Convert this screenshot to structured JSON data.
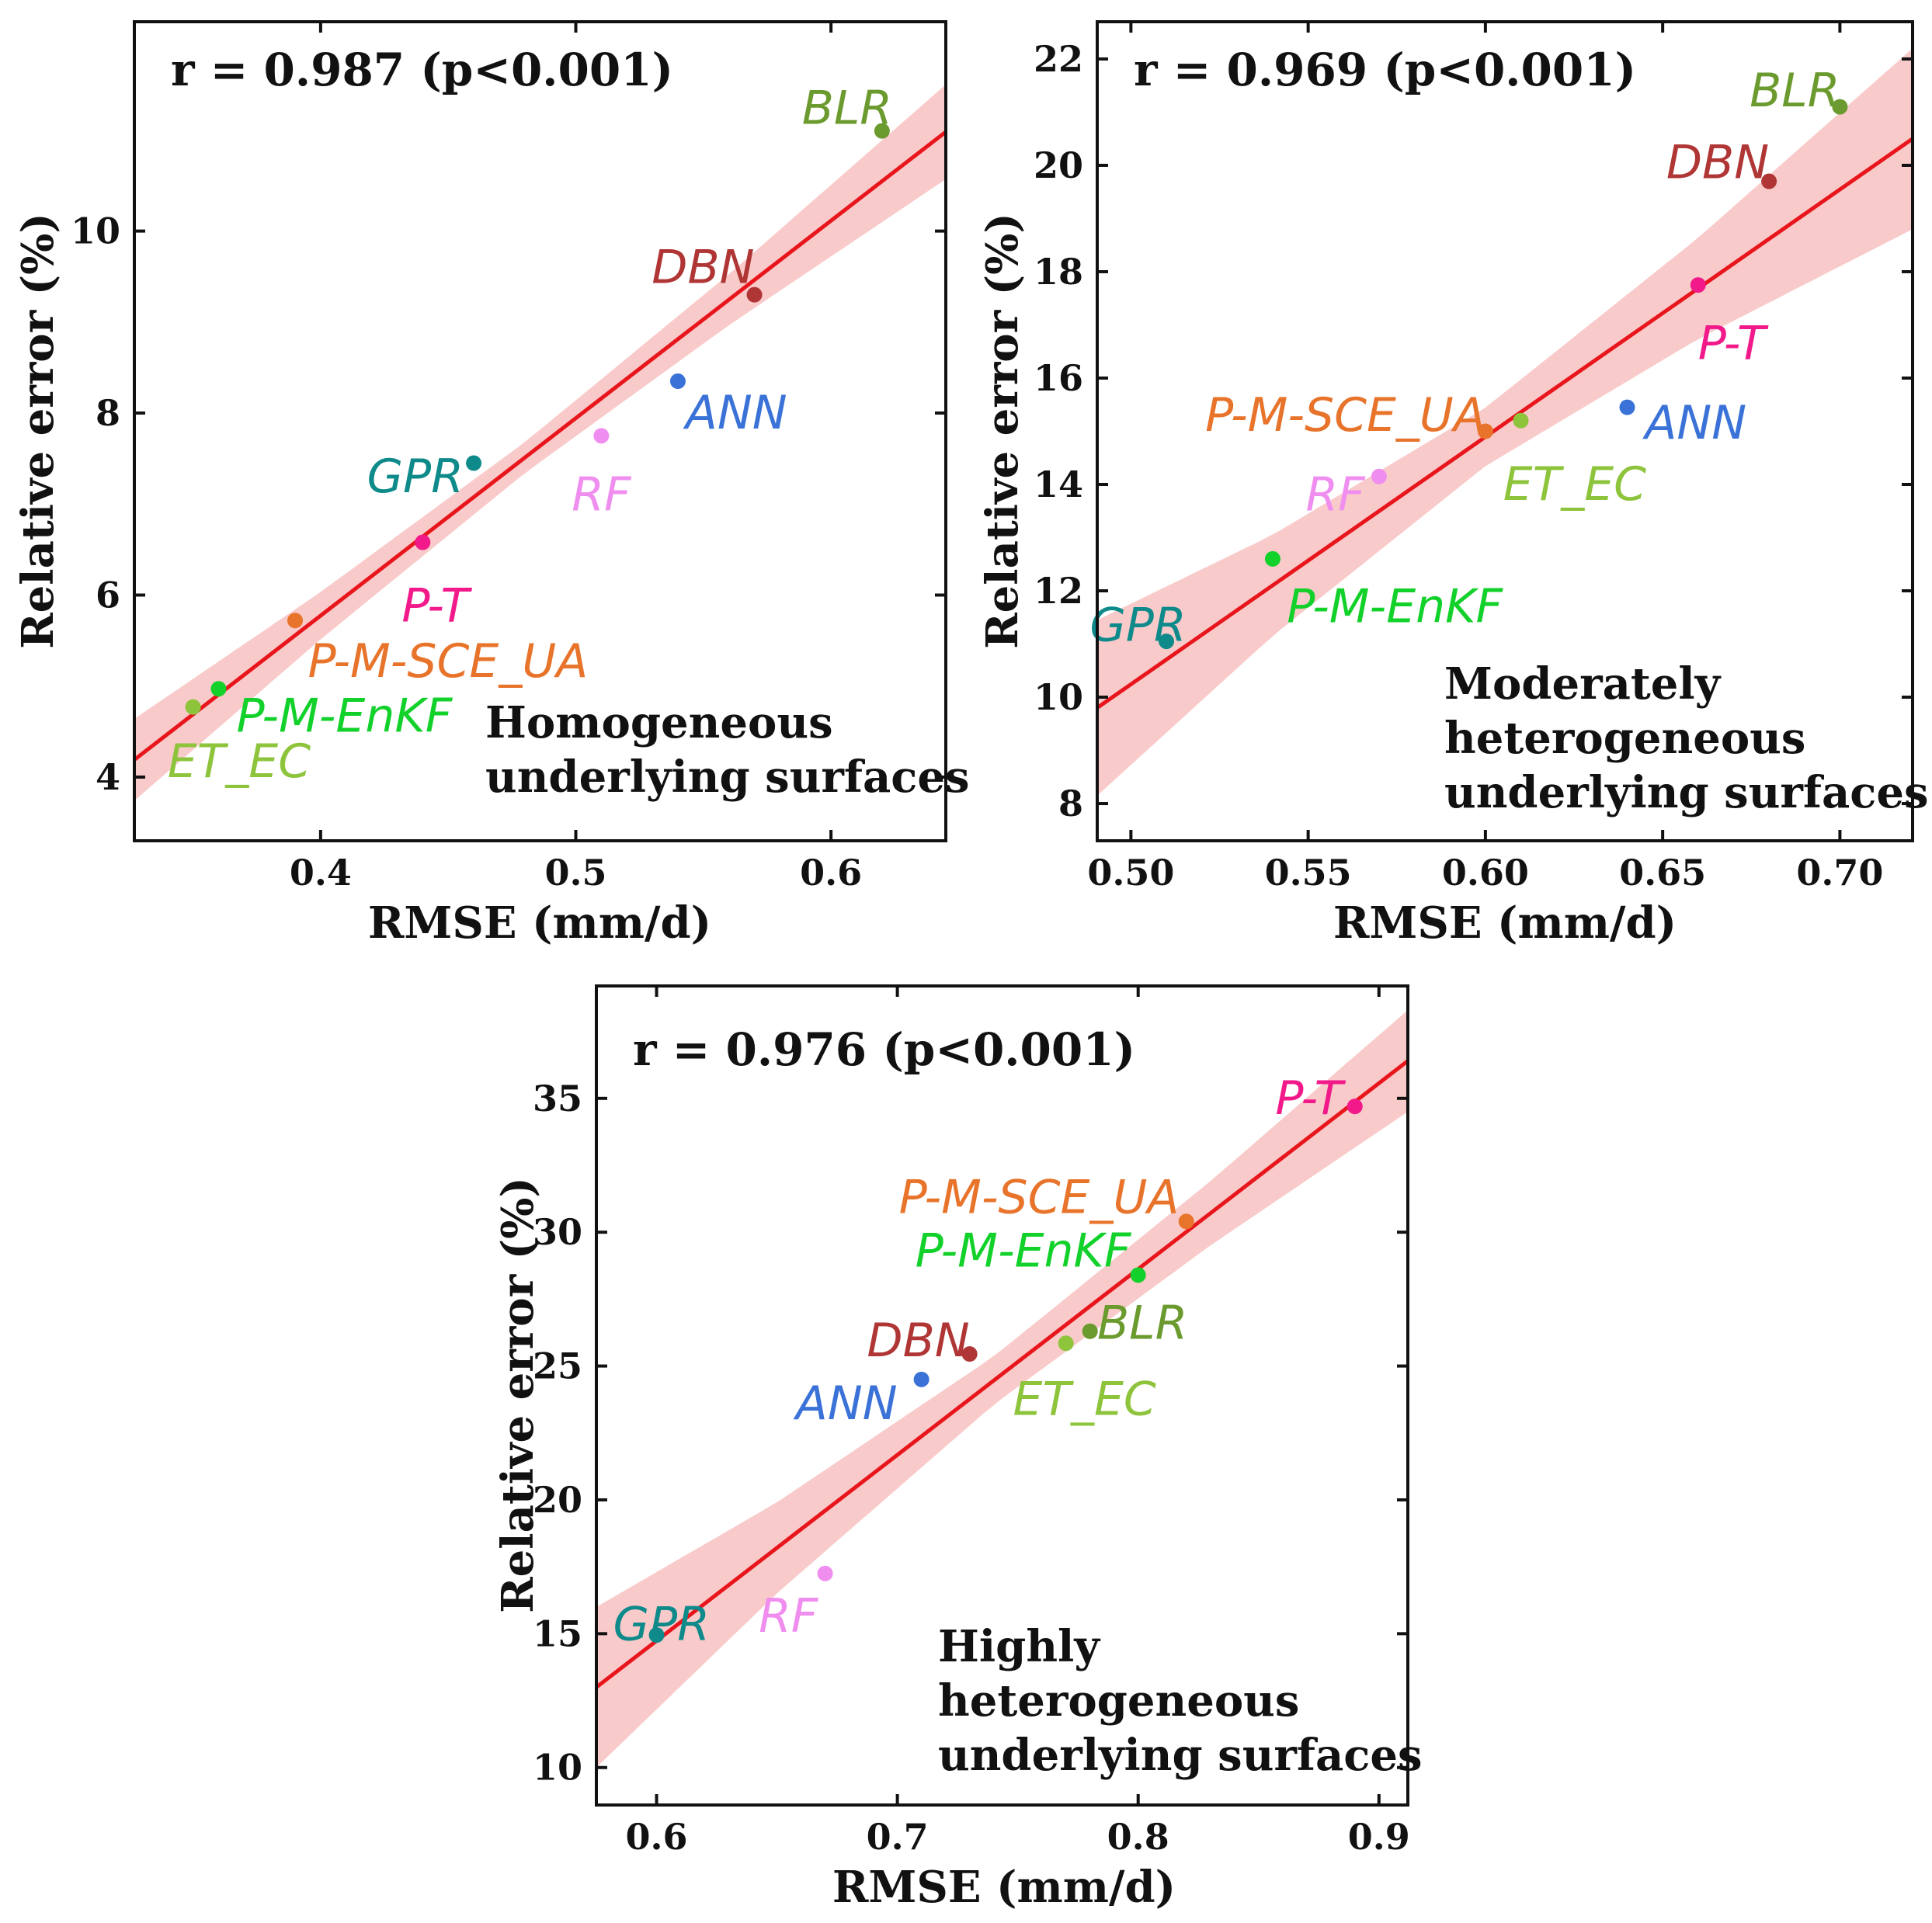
{
  "colors": {
    "fit_line": "#e8161c",
    "confidence_band": "#f7b8b8",
    "BLR": "#6b9a2e",
    "DBN": "#b03535",
    "ANN": "#3a72d8",
    "GPR": "#0f8a8a",
    "RF": "#f08ef0",
    "P-T": "#f2198a",
    "P-M-SCE_UA": "#e8732a",
    "P-M-EnKF": "#12d12a",
    "ET_EC": "#8ec43c"
  },
  "chart_data": [
    {
      "type": "scatter",
      "id": "homogeneous",
      "r_text": "r = 0.987 (p<0.001)",
      "note_lines": [
        "Homogeneous",
        "underlying surfaces"
      ],
      "xlabel": "RMSE (mm/d)",
      "ylabel": "Relative error (%)",
      "xlim": [
        0.327,
        0.645
      ],
      "ylim": [
        3.3,
        12.3
      ],
      "xticks": [
        {
          "v": 0.4,
          "label": "0.4"
        },
        {
          "v": 0.5,
          "label": "0.5"
        },
        {
          "v": 0.6,
          "label": "0.6"
        }
      ],
      "yticks": [
        {
          "v": 4,
          "label": "4"
        },
        {
          "v": 6,
          "label": "6"
        },
        {
          "v": 8,
          "label": "8"
        },
        {
          "v": 10,
          "label": "10"
        }
      ],
      "fit": {
        "x": [
          0.327,
          0.645
        ],
        "y": [
          4.19,
          11.09
        ]
      },
      "band": {
        "x": [
          0.327,
          0.4,
          0.48,
          0.56,
          0.645
        ],
        "half_width": [
          0.45,
          0.26,
          0.17,
          0.28,
          0.52
        ]
      },
      "points": [
        {
          "name": "BLR",
          "x": 0.62,
          "y": 11.1,
          "label": "BLR",
          "dx": 0.004,
          "dy": 0.25,
          "anchor": "end"
        },
        {
          "name": "DBN",
          "x": 0.57,
          "y": 9.3,
          "label": "DBN",
          "dx": 0.0,
          "dy": 0.3,
          "anchor": "end"
        },
        {
          "name": "ANN",
          "x": 0.54,
          "y": 8.35,
          "label": "ANN",
          "dx": 0.003,
          "dy": -0.35,
          "anchor": "start"
        },
        {
          "name": "GPR",
          "x": 0.46,
          "y": 7.45,
          "label": "GPR",
          "dx": -0.004,
          "dy": -0.15,
          "anchor": "end"
        },
        {
          "name": "RF",
          "x": 0.51,
          "y": 7.75,
          "label": "RF",
          "dx": 0.0,
          "dy": -0.65,
          "anchor": "middle"
        },
        {
          "name": "P-T",
          "x": 0.44,
          "y": 6.58,
          "label": "P-T",
          "dx": 0.005,
          "dy": -0.7,
          "anchor": "middle"
        },
        {
          "name": "P-M-SCE_UA",
          "x": 0.39,
          "y": 5.72,
          "label": "P-M-SCE_UA",
          "dx": 0.005,
          "dy": -0.45,
          "anchor": "start"
        },
        {
          "name": "P-M-EnKF",
          "x": 0.36,
          "y": 4.97,
          "label": "P-M-EnKF",
          "dx": 0.007,
          "dy": -0.3,
          "anchor": "start"
        },
        {
          "name": "ET_EC",
          "x": 0.35,
          "y": 4.77,
          "label": "ET_EC",
          "dx": -0.01,
          "dy": -0.6,
          "anchor": "start"
        }
      ]
    },
    {
      "type": "scatter",
      "id": "moderate",
      "r_text": "r = 0.969 (p<0.001)",
      "note_lines": [
        "Moderately",
        "heterogeneous",
        "underlying surfaces"
      ],
      "xlabel": "RMSE (mm/d)",
      "ylabel": "Relative error (%)",
      "xlim": [
        0.4905,
        0.7205
      ],
      "ylim": [
        7.3,
        22.7
      ],
      "xticks": [
        {
          "v": 0.5,
          "label": "0.50"
        },
        {
          "v": 0.55,
          "label": "0.55"
        },
        {
          "v": 0.6,
          "label": "0.60"
        },
        {
          "v": 0.65,
          "label": "0.65"
        },
        {
          "v": 0.7,
          "label": "0.70"
        }
      ],
      "yticks": [
        {
          "v": 8,
          "label": "8"
        },
        {
          "v": 10,
          "label": "10"
        },
        {
          "v": 12,
          "label": "12"
        },
        {
          "v": 14,
          "label": "14"
        },
        {
          "v": 16,
          "label": "16"
        },
        {
          "v": 18,
          "label": "18"
        },
        {
          "v": 20,
          "label": "20"
        },
        {
          "v": 22,
          "label": "22"
        }
      ],
      "fit": {
        "x": [
          0.4905,
          0.7205
        ],
        "y": [
          9.8,
          20.5
        ]
      },
      "band": {
        "x": [
          0.4905,
          0.54,
          0.6,
          0.66,
          0.7205
        ],
        "half_width": [
          1.65,
          0.95,
          0.55,
          0.95,
          1.7
        ]
      },
      "points": [
        {
          "name": "BLR",
          "x": 0.7,
          "y": 21.1,
          "label": "BLR",
          "dx": -0.0,
          "dy": 0.3,
          "anchor": "end"
        },
        {
          "name": "DBN",
          "x": 0.68,
          "y": 19.7,
          "label": "DBN",
          "dx": 0.0,
          "dy": 0.35,
          "anchor": "end"
        },
        {
          "name": "P-T",
          "x": 0.66,
          "y": 17.75,
          "label": "P-T",
          "dx": 0.0,
          "dy": -1.1,
          "anchor": "start"
        },
        {
          "name": "ANN",
          "x": 0.64,
          "y": 15.45,
          "label": "ANN",
          "dx": 0.005,
          "dy": -0.3,
          "anchor": "start"
        },
        {
          "name": "P-M-SCE_UA",
          "x": 0.6,
          "y": 15.0,
          "label": "P-M-SCE_UA",
          "dx": 0.0,
          "dy": 0.3,
          "anchor": "end"
        },
        {
          "name": "ET_EC",
          "x": 0.61,
          "y": 15.2,
          "label": "ET_EC",
          "dx": -0.005,
          "dy": -1.2,
          "anchor": "start"
        },
        {
          "name": "RF",
          "x": 0.57,
          "y": 14.15,
          "label": "RF",
          "dx": -0.004,
          "dy": -0.35,
          "anchor": "end"
        },
        {
          "name": "P-M-EnKF",
          "x": 0.54,
          "y": 12.6,
          "label": "P-M-EnKF",
          "dx": 0.004,
          "dy": -0.9,
          "anchor": "start"
        },
        {
          "name": "GPR",
          "x": 0.51,
          "y": 11.05,
          "label": "GPR",
          "dx": -0.008,
          "dy": 0.3,
          "anchor": "middle"
        }
      ]
    },
    {
      "type": "scatter",
      "id": "high",
      "r_text": "r = 0.976 (p<0.001)",
      "note_lines": [
        "Highly",
        "heterogeneous",
        "underlying surfaces"
      ],
      "xlabel": "RMSE (mm/d)",
      "ylabel": "Relative error (%)",
      "xlim": [
        0.575,
        0.912
      ],
      "ylim": [
        8.6,
        39.2
      ],
      "xticks": [
        {
          "v": 0.6,
          "label": "0.6"
        },
        {
          "v": 0.7,
          "label": "0.7"
        },
        {
          "v": 0.8,
          "label": "0.8"
        },
        {
          "v": 0.9,
          "label": "0.9"
        }
      ],
      "yticks": [
        {
          "v": 10,
          "label": "10"
        },
        {
          "v": 15,
          "label": "15"
        },
        {
          "v": 20,
          "label": "20"
        },
        {
          "v": 25,
          "label": "25"
        },
        {
          "v": 30,
          "label": "30"
        },
        {
          "v": 35,
          "label": "35"
        }
      ],
      "fit": {
        "x": [
          0.575,
          0.912
        ],
        "y": [
          13.0,
          36.4
        ]
      },
      "band": {
        "x": [
          0.575,
          0.65,
          0.74,
          0.83,
          0.912
        ],
        "half_width": [
          3.0,
          1.7,
          0.9,
          1.2,
          1.9
        ]
      },
      "points": [
        {
          "name": "P-T",
          "x": 0.89,
          "y": 34.7,
          "label": "P-T",
          "dx": -0.005,
          "dy": 0.3,
          "anchor": "end"
        },
        {
          "name": "P-M-SCE_UA",
          "x": 0.82,
          "y": 30.4,
          "label": "P-M-SCE_UA",
          "dx": -0.003,
          "dy": 0.9,
          "anchor": "end"
        },
        {
          "name": "P-M-EnKF",
          "x": 0.8,
          "y": 28.4,
          "label": "P-M-EnKF",
          "dx": -0.003,
          "dy": 0.9,
          "anchor": "end"
        },
        {
          "name": "BLR",
          "x": 0.78,
          "y": 26.3,
          "label": "BLR",
          "dx": 0.003,
          "dy": 0.3,
          "anchor": "start"
        },
        {
          "name": "ET_EC",
          "x": 0.77,
          "y": 25.85,
          "label": "ET_EC",
          "dx": -0.022,
          "dy": -2.1,
          "anchor": "start"
        },
        {
          "name": "DBN",
          "x": 0.73,
          "y": 25.45,
          "label": "DBN",
          "dx": -0.0,
          "dy": 0.5,
          "anchor": "end"
        },
        {
          "name": "ANN",
          "x": 0.71,
          "y": 24.5,
          "label": "ANN",
          "dx": -0.01,
          "dy": -0.9,
          "anchor": "end"
        },
        {
          "name": "RF",
          "x": 0.67,
          "y": 17.25,
          "label": "RF",
          "dx": -0.003,
          "dy": -1.6,
          "anchor": "end"
        },
        {
          "name": "GPR",
          "x": 0.6,
          "y": 14.95,
          "label": "GPR",
          "dx": 0.002,
          "dy": 0.4,
          "anchor": "middle"
        }
      ]
    }
  ]
}
